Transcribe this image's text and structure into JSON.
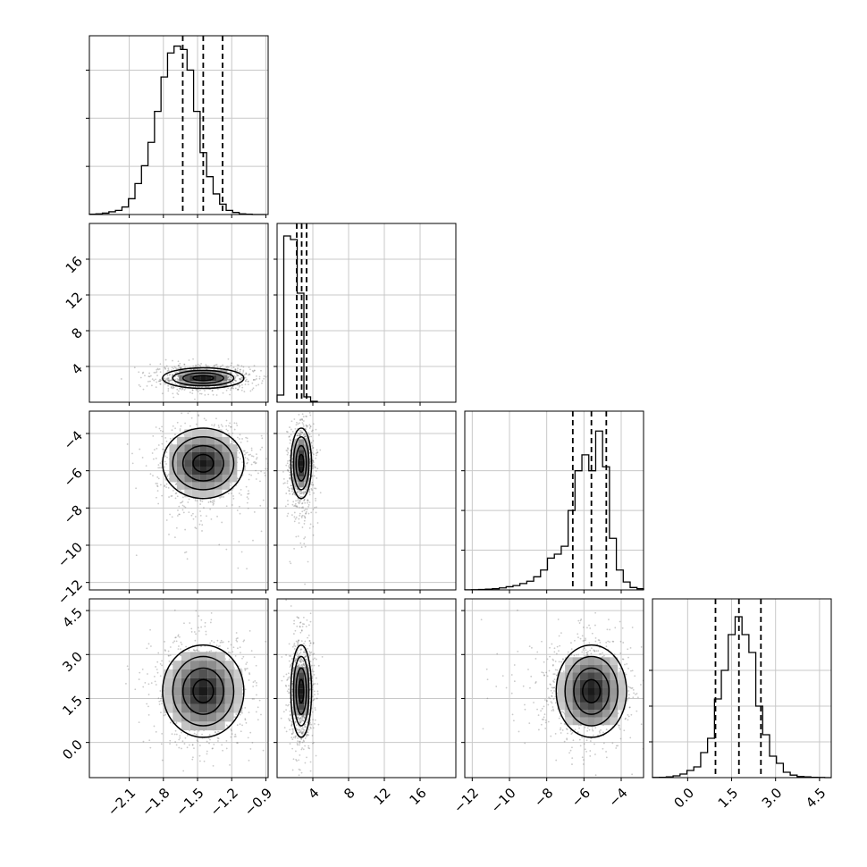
{
  "chart_data": {
    "type": "corner",
    "n_params": 4,
    "params": [
      {
        "index": 0,
        "range": [
          -2.45,
          -0.88
        ],
        "ticks": [
          -2.1,
          -1.8,
          -1.5,
          -1.2,
          -0.9
        ],
        "tick_labels": [
          "−2.1",
          "−1.8",
          "−1.5",
          "−1.2",
          "−0.9"
        ],
        "quantiles": [
          -1.63,
          -1.45,
          -1.28
        ],
        "mean": -1.45,
        "sd": 0.17
      },
      {
        "index": 1,
        "range": [
          0.0,
          20.0
        ],
        "ticks": [
          4,
          8,
          12,
          16
        ],
        "tick_labels": [
          "4",
          "8",
          "12",
          "16"
        ],
        "quantiles": [
          2.2,
          2.75,
          3.3
        ],
        "mean": 2.7,
        "sd": 0.55
      },
      {
        "index": 2,
        "range": [
          -12.4,
          -2.8
        ],
        "ticks": [
          -12,
          -10,
          -8,
          -6,
          -4
        ],
        "tick_labels": [
          "−12",
          "−10",
          "−8",
          "−6",
          "−4"
        ],
        "quantiles": [
          -6.6,
          -5.6,
          -4.8
        ],
        "mean": -5.6,
        "sd": 0.9
      },
      {
        "index": 3,
        "range": [
          -1.2,
          4.9
        ],
        "ticks": [
          0.0,
          1.5,
          3.0,
          4.5
        ],
        "tick_labels": [
          "0.0",
          "1.5",
          "3.0",
          "4.5"
        ],
        "quantiles": [
          0.95,
          1.75,
          2.5
        ],
        "mean": 1.75,
        "sd": 0.75
      }
    ],
    "histograms": [
      {
        "param": 0,
        "ylim": [
          0,
          0.26
        ],
        "ticks": [
          0.07,
          0.14,
          0.21
        ],
        "bins": [
          -2.45,
          -2.3928,
          -2.3356,
          -2.2784,
          -2.2212,
          -2.164,
          -2.1068,
          -2.0496,
          -1.9924,
          -1.9352,
          -1.878,
          -1.8208,
          -1.7636,
          -1.7064,
          -1.6492,
          -1.592,
          -1.5348,
          -1.4776,
          -1.4204,
          -1.3632,
          -1.306,
          -1.2488,
          -1.1916,
          -1.1344,
          -1.0772,
          -1.02,
          -0.9628,
          -0.9056
        ],
        "values": [
          0.0005,
          0.001,
          0.002,
          0.004,
          0.006,
          0.011,
          0.023,
          0.045,
          0.071,
          0.105,
          0.15,
          0.2,
          0.235,
          0.245,
          0.24,
          0.21,
          0.15,
          0.09,
          0.055,
          0.03,
          0.015,
          0.006,
          0.003,
          0.001,
          0.0005,
          0,
          0
        ]
      },
      {
        "param": 1,
        "ylim": [
          0,
          20
        ],
        "ticks": [
          4,
          8,
          12,
          16
        ],
        "bins": [
          0.0,
          0.75,
          1.5,
          2.25,
          3.0,
          3.75,
          4.5
        ],
        "values": [
          0.8,
          18.6,
          18.2,
          12.2,
          0.6,
          0.1
        ]
      },
      {
        "param": 2,
        "ylim": [
          0,
          0.45
        ],
        "ticks": [
          0.1,
          0.2,
          0.3
        ],
        "bins": [
          -12.4,
          -12.03,
          -11.66,
          -11.29,
          -10.92,
          -10.55,
          -10.18,
          -9.81,
          -9.44,
          -9.07,
          -8.7,
          -8.33,
          -7.96,
          -7.59,
          -7.22,
          -6.85,
          -6.48,
          -6.11,
          -5.74,
          -5.37,
          -5.0,
          -4.63,
          -4.26,
          -3.89,
          -3.52,
          -3.15,
          -2.8
        ],
        "values": [
          0.0003,
          0.0005,
          0.001,
          0.002,
          0.003,
          0.005,
          0.008,
          0.011,
          0.016,
          0.022,
          0.033,
          0.05,
          0.08,
          0.09,
          0.11,
          0.2,
          0.3,
          0.34,
          0.3,
          0.4,
          0.31,
          0.13,
          0.05,
          0.02,
          0.006,
          0.003
        ]
      },
      {
        "param": 3,
        "ylim": [
          0,
          0.5
        ],
        "ticks": [
          0.1,
          0.2,
          0.3
        ],
        "bins": [
          -1.2,
          -0.965,
          -0.73,
          -0.495,
          -0.26,
          -0.025,
          0.21,
          0.445,
          0.68,
          0.915,
          1.15,
          1.385,
          1.62,
          1.855,
          2.09,
          2.325,
          2.56,
          2.795,
          3.03,
          3.265,
          3.5,
          3.735,
          3.97,
          4.205,
          4.44,
          4.675,
          4.91
        ],
        "values": [
          0.0005,
          0.001,
          0.002,
          0.005,
          0.01,
          0.02,
          0.03,
          0.07,
          0.11,
          0.22,
          0.3,
          0.4,
          0.45,
          0.4,
          0.35,
          0.2,
          0.12,
          0.06,
          0.04,
          0.015,
          0.007,
          0.003,
          0.002,
          0.001,
          0.0005,
          0
        ]
      }
    ],
    "contour_levels_sigma": [
      0.5,
      1.0,
      1.5,
      2.0
    ],
    "style": {
      "line_color": "#000000",
      "grid_color": "#c8c8c8",
      "point_color": "#666666"
    }
  }
}
